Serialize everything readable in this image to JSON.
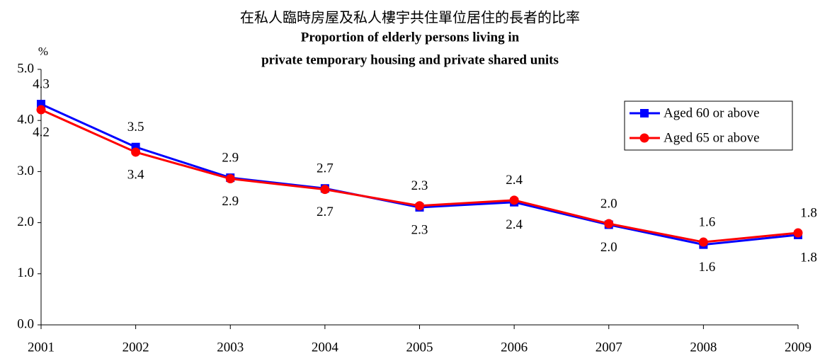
{
  "chart_data": {
    "type": "line",
    "title": "在私人臨時房屋及私人樓宇共住單位居住的長者的比率",
    "subtitle": [
      "Proportion of elderly persons living in",
      "private temporary housing and private shared units"
    ],
    "y_label": "%",
    "categories": [
      "2001",
      "2002",
      "2003",
      "2004",
      "2005",
      "2006",
      "2007",
      "2008",
      "2009"
    ],
    "series": [
      {
        "name": "Aged 60 or above",
        "color": "#0000ff",
        "marker": "square",
        "values": [
          4.32,
          3.48,
          2.88,
          2.67,
          2.3,
          2.4,
          1.96,
          1.57,
          1.76
        ],
        "value_labels": [
          "4.3",
          "3.5",
          "2.9",
          "2.7",
          "2.3",
          "2.4",
          "2.0",
          "1.6",
          "1.8"
        ]
      },
      {
        "name": "Aged 65 or above",
        "color": "#ff0000",
        "marker": "circle",
        "values": [
          4.21,
          3.38,
          2.86,
          2.65,
          2.33,
          2.44,
          1.98,
          1.62,
          1.8
        ],
        "value_labels": [
          "4.2",
          "3.4",
          "2.9",
          "2.7",
          "2.3",
          "2.4",
          "2.0",
          "1.6",
          "1.8"
        ]
      }
    ],
    "ylim": [
      0,
      5
    ],
    "yticks": [
      {
        "value": 0,
        "label": "0.0"
      },
      {
        "value": 1,
        "label": "1.0"
      },
      {
        "value": 2,
        "label": "2.0"
      },
      {
        "value": 3,
        "label": "3.0"
      },
      {
        "value": 4,
        "label": "4.0"
      },
      {
        "value": 5,
        "label": "5.0"
      }
    ],
    "legend": "upper right",
    "grid": false
  }
}
